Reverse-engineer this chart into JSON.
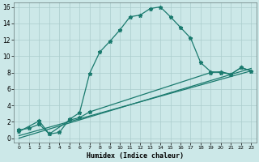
{
  "xlabel": "Humidex (Indice chaleur)",
  "background_color": "#cce8e8",
  "grid_color": "#aacccc",
  "line_color": "#1a7a6e",
  "xlim": [
    -0.5,
    23.5
  ],
  "ylim": [
    -0.5,
    16.5
  ],
  "xticks": [
    0,
    1,
    2,
    3,
    4,
    5,
    6,
    7,
    8,
    9,
    10,
    11,
    12,
    13,
    14,
    15,
    16,
    17,
    18,
    19,
    20,
    21,
    22,
    23
  ],
  "yticks": [
    0,
    2,
    4,
    6,
    8,
    10,
    12,
    14,
    16
  ],
  "curve1_x": [
    0,
    1,
    2,
    3,
    4,
    5,
    6,
    7,
    8,
    9,
    10,
    11,
    12,
    13,
    14,
    15,
    16,
    17,
    18,
    19,
    20,
    21,
    22,
    23
  ],
  "curve1_y": [
    1.0,
    1.2,
    1.7,
    0.5,
    0.7,
    2.3,
    3.1,
    7.9,
    10.5,
    11.8,
    13.2,
    14.8,
    15.0,
    15.8,
    16.0,
    14.8,
    13.5,
    12.2,
    9.2,
    8.1,
    8.0,
    7.8,
    8.6,
    8.2
  ],
  "curve2_x": [
    0,
    2,
    3,
    5,
    6,
    7,
    19,
    20,
    21,
    22,
    23
  ],
  "curve2_y": [
    0.8,
    2.1,
    0.5,
    2.2,
    2.5,
    3.2,
    8.0,
    8.1,
    7.8,
    8.6,
    8.2
  ],
  "curve3_x": [
    0,
    23
  ],
  "curve3_y": [
    0.3,
    8.2
  ],
  "curve4_x": [
    0,
    23
  ],
  "curve4_y": [
    0.0,
    8.5
  ],
  "markersize": 3.5,
  "linewidth": 0.9
}
